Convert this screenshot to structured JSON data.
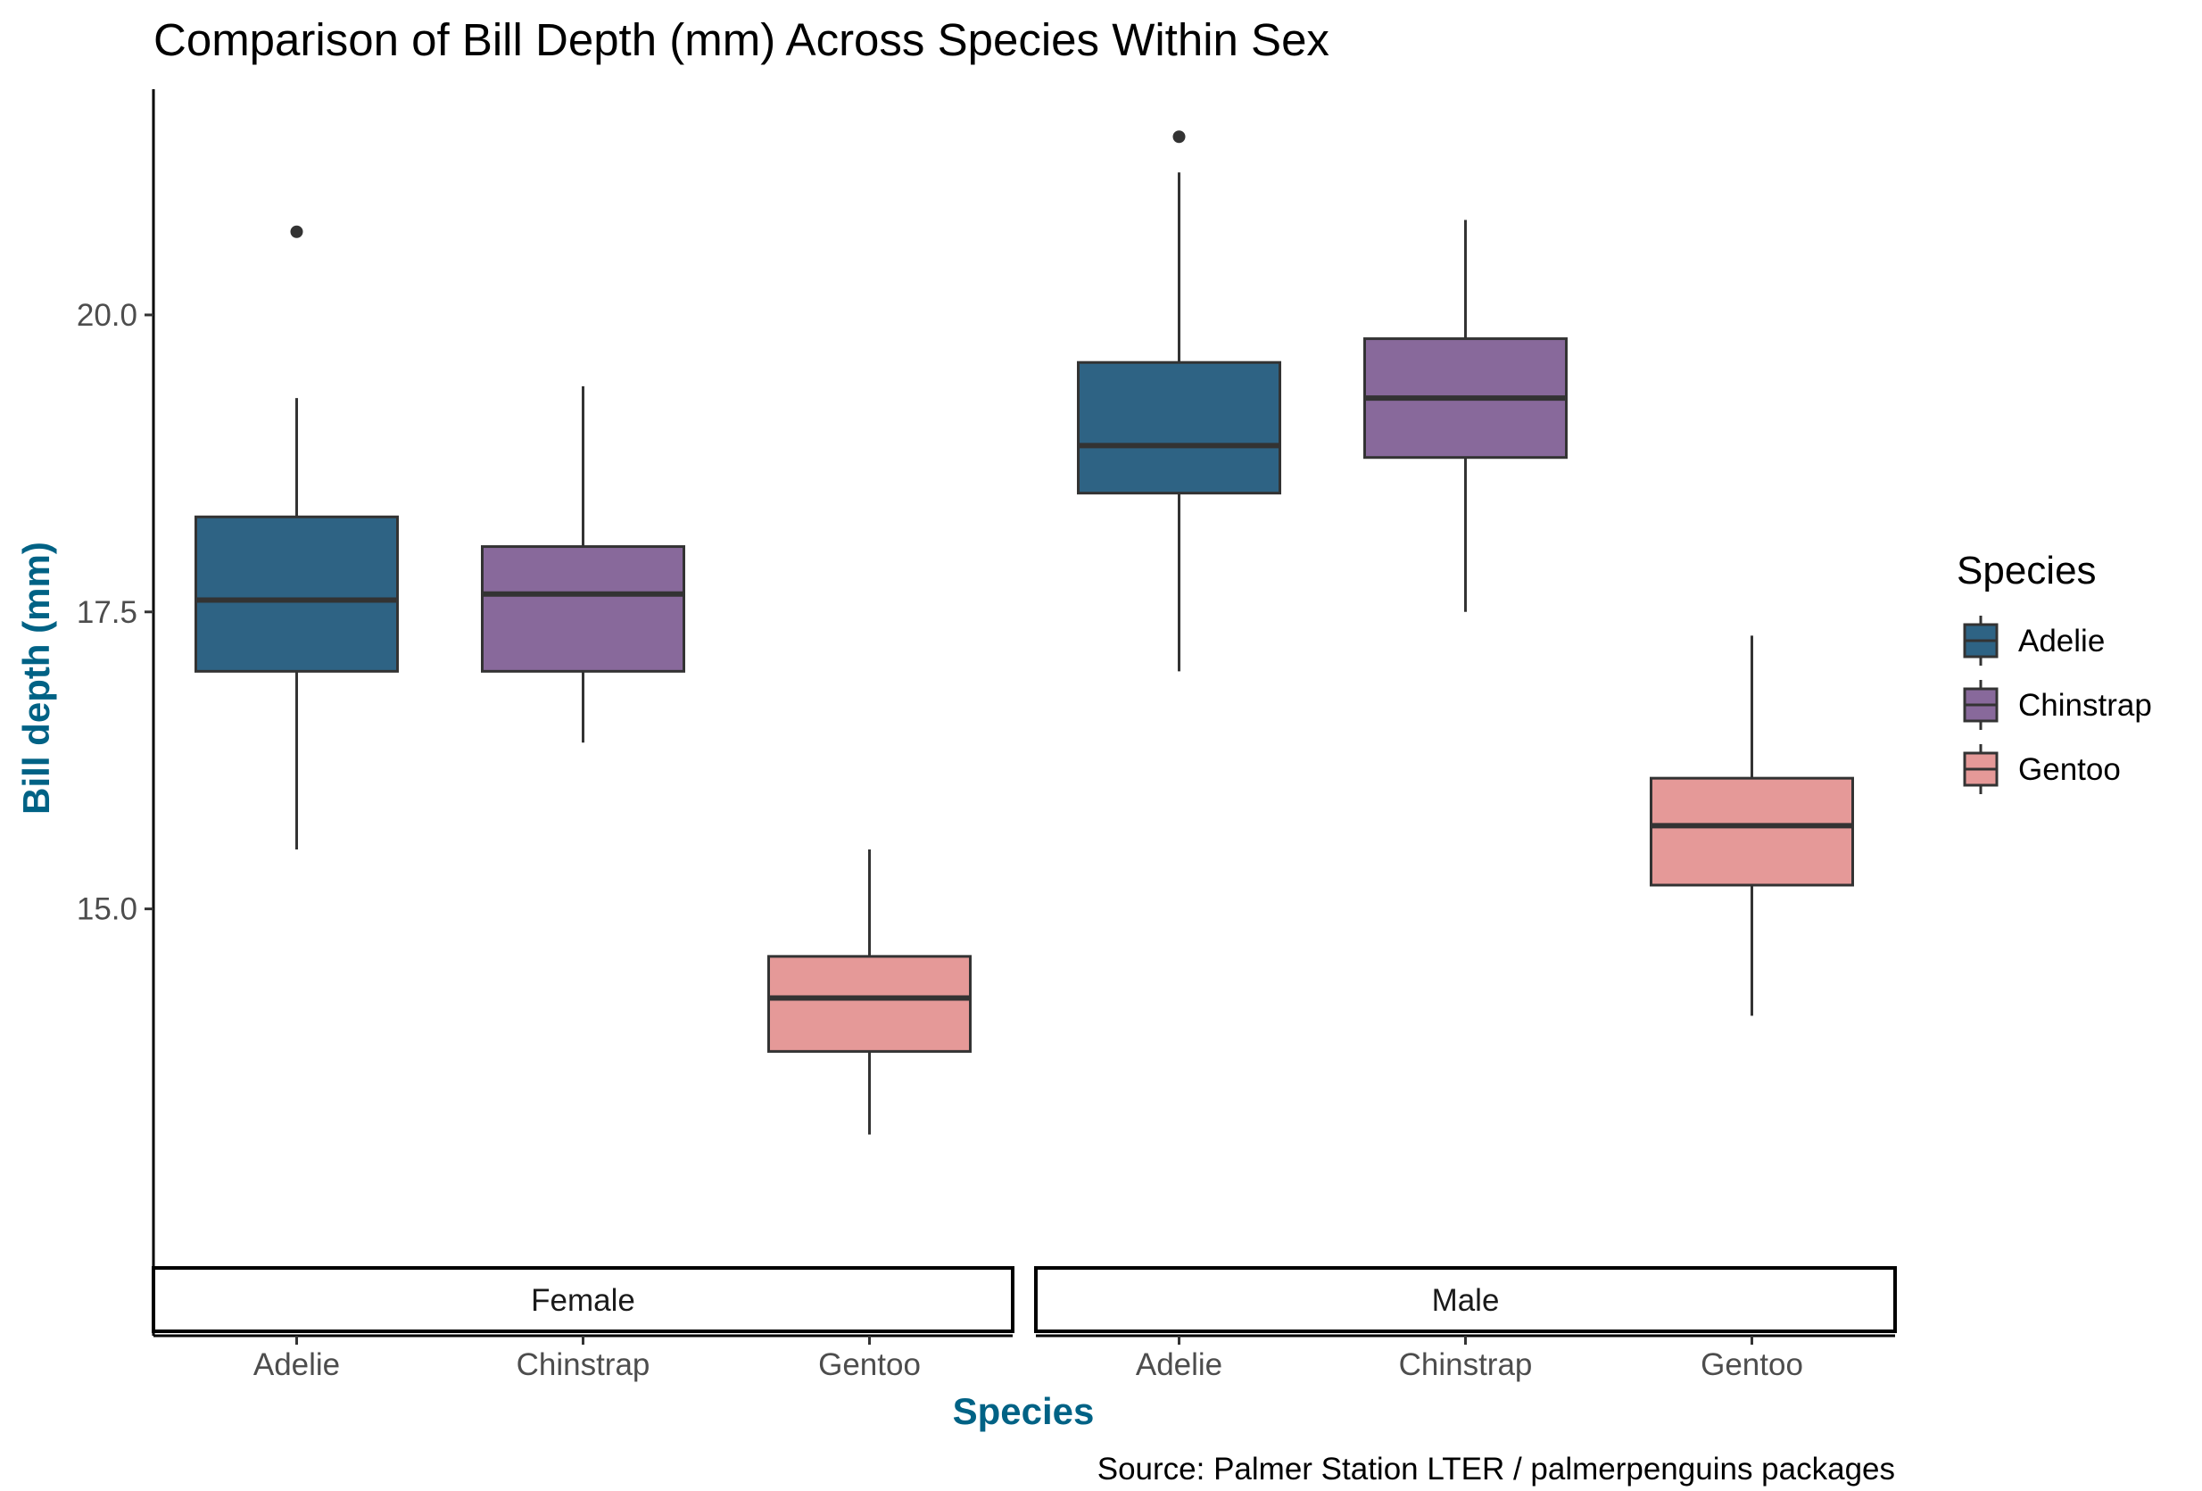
{
  "chart_data": {
    "type": "boxplot",
    "title": "Comparison of Bill Depth (mm) Across Species Within Sex",
    "xlabel": "Species",
    "ylabel": "Bill depth (mm)",
    "caption": "Source: Palmer Station LTER / palmerpenguins packages",
    "ylim": [
      12.0,
      21.9
    ],
    "yticks": [
      15.0,
      17.5,
      20.0
    ],
    "ytick_labels": [
      "15.0",
      "17.5",
      "20.0"
    ],
    "grid": false,
    "legend_position": "right",
    "legend_title": "Species",
    "axis_title_color": "#006285",
    "categories": [
      "Adelie",
      "Chinstrap",
      "Gentoo"
    ],
    "colors": {
      "Adelie": "#2e6384",
      "Chinstrap": "#88699b",
      "Gentoo": "#e59998"
    },
    "panels": [
      {
        "label": "Female",
        "boxes": [
          {
            "species": "Adelie",
            "whisker_low": 15.5,
            "q1": 17.0,
            "median": 17.6,
            "q3": 18.3,
            "whisker_high": 19.3,
            "outliers": [
              20.7
            ]
          },
          {
            "species": "Chinstrap",
            "whisker_low": 16.4,
            "q1": 17.0,
            "median": 17.65,
            "q3": 18.05,
            "whisker_high": 19.4,
            "outliers": []
          },
          {
            "species": "Gentoo",
            "whisker_low": 13.1,
            "q1": 13.8,
            "median": 14.25,
            "q3": 14.6,
            "whisker_high": 15.5,
            "outliers": []
          }
        ]
      },
      {
        "label": "Male",
        "boxes": [
          {
            "species": "Adelie",
            "whisker_low": 17.0,
            "q1": 18.5,
            "median": 18.9,
            "q3": 19.6,
            "whisker_high": 21.2,
            "outliers": [
              21.5
            ]
          },
          {
            "species": "Chinstrap",
            "whisker_low": 17.5,
            "q1": 18.8,
            "median": 19.3,
            "q3": 19.8,
            "whisker_high": 20.8,
            "outliers": []
          },
          {
            "species": "Gentoo",
            "whisker_low": 14.1,
            "q1": 15.2,
            "median": 15.7,
            "q3": 16.1,
            "whisker_high": 17.3,
            "outliers": []
          }
        ]
      }
    ]
  }
}
